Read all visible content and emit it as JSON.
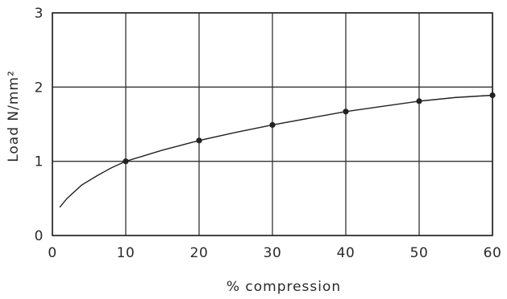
{
  "chart_data": {
    "type": "line",
    "title": "",
    "xlabel": "% compression",
    "ylabel": "Load N/mm²",
    "xlim": [
      0,
      60
    ],
    "ylim": [
      0,
      3
    ],
    "x_ticks": [
      "0",
      "10",
      "20",
      "30",
      "40",
      "50",
      "60"
    ],
    "y_ticks": [
      "0",
      "1",
      "2",
      "3"
    ],
    "grid": true,
    "legend": "none",
    "series": [
      {
        "curve": {
          "x": [
            1,
            2,
            4,
            6,
            8,
            10,
            15,
            20,
            25,
            30,
            35,
            40,
            45,
            50,
            55,
            60
          ],
          "y": [
            0.38,
            0.5,
            0.68,
            0.8,
            0.91,
            1.0,
            1.15,
            1.28,
            1.39,
            1.49,
            1.58,
            1.67,
            1.74,
            1.81,
            1.86,
            1.89
          ]
        },
        "markers": {
          "x": [
            10,
            20,
            30,
            40,
            50,
            60
          ],
          "y": [
            1.0,
            1.28,
            1.49,
            1.67,
            1.81,
            1.89
          ]
        }
      }
    ]
  }
}
